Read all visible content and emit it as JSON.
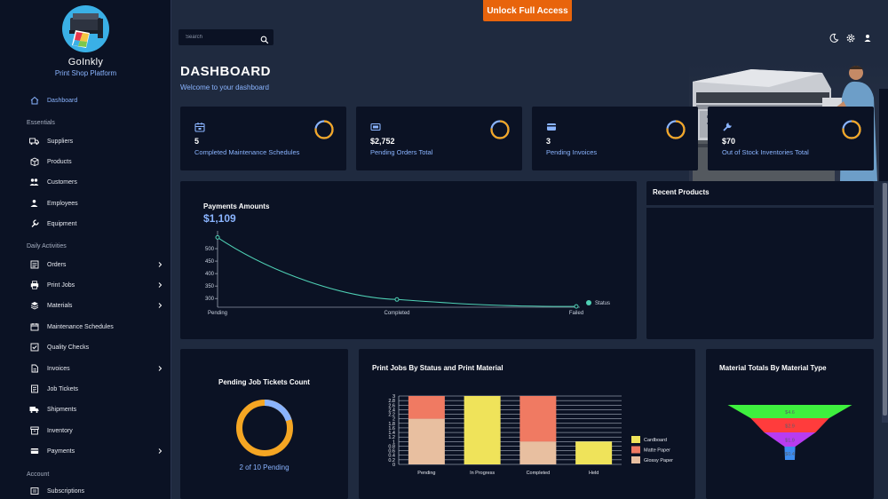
{
  "app": {
    "name": "GoInkly",
    "tagline": "Print Shop Platform"
  },
  "topbar": {
    "unlock_label": "Unlock Full Access",
    "search_placeholder": "Search"
  },
  "page": {
    "title": "DASHBOARD",
    "subtitle": "Welcome to your dashboard"
  },
  "sidebar": {
    "dashboard": "Dashboard",
    "sections": {
      "essentials": "Essentials",
      "daily": "Daily Activities",
      "account": "Account"
    },
    "items": [
      {
        "label": "Suppliers",
        "icon": "truck-icon"
      },
      {
        "label": "Products",
        "icon": "box-icon"
      },
      {
        "label": "Customers",
        "icon": "users-icon"
      },
      {
        "label": "Employees",
        "icon": "user-group-icon"
      },
      {
        "label": "Equipment",
        "icon": "wrench-icon"
      },
      {
        "label": "Orders",
        "icon": "list-icon",
        "has_children": true
      },
      {
        "label": "Print Jobs",
        "icon": "printer-icon",
        "has_children": true
      },
      {
        "label": "Materials",
        "icon": "layers-icon",
        "has_children": true
      },
      {
        "label": "Maintenance Schedules",
        "icon": "calendar-icon"
      },
      {
        "label": "Quality Checks",
        "icon": "check-square-icon"
      },
      {
        "label": "Invoices",
        "icon": "file-icon",
        "has_children": true
      },
      {
        "label": "Job Tickets",
        "icon": "ticket-icon"
      },
      {
        "label": "Shipments",
        "icon": "shipping-icon"
      },
      {
        "label": "Inventory",
        "icon": "archive-icon"
      },
      {
        "label": "Payments",
        "icon": "credit-card-icon",
        "has_children": true
      },
      {
        "label": "Subscriptions",
        "icon": "repeat-icon"
      }
    ]
  },
  "stats": [
    {
      "value": "5",
      "label": "Completed Maintenance Schedules",
      "icon": "calendar-icon"
    },
    {
      "value": "$2,752",
      "label": "Pending Orders Total",
      "icon": "money-icon"
    },
    {
      "value": "3",
      "label": "Pending Invoices",
      "icon": "card-icon"
    },
    {
      "value": "$70",
      "label": "Out of Stock Inventories Total",
      "icon": "wrench-icon"
    }
  ],
  "colors": {
    "accent": "#8ab4ff",
    "ring": "#f5a623",
    "ring_track": "#8ab4ff",
    "unlock": "#e8640c",
    "line": "#4fd1b5"
  },
  "payments": {
    "title": "Payments Amounts",
    "total": "$1,109",
    "legend": "Status",
    "chart_data": {
      "type": "line",
      "categories": [
        "Pending",
        "Completed",
        "Failed"
      ],
      "values": [
        545,
        296,
        268
      ],
      "y_ticks": [
        300,
        350,
        400,
        450,
        500
      ],
      "ylim": [
        265,
        550
      ],
      "grid": false,
      "legend": "right"
    }
  },
  "recent_products": {
    "title": "Recent Products"
  },
  "tickets": {
    "title": "Pending Job Tickets Count",
    "caption": "2 of 10 Pending",
    "pending": 2,
    "total": 10
  },
  "print_jobs": {
    "title": "Print Jobs By Status and Print Material",
    "chart_data": {
      "type": "bar",
      "stacked": true,
      "categories": [
        "Pending",
        "In Progress",
        "Completed",
        "Held"
      ],
      "series": [
        {
          "name": "Glossy Paper",
          "color": "#e8bfa0",
          "values": [
            2,
            0,
            1,
            0
          ]
        },
        {
          "name": "Matte Paper",
          "color": "#f07a62",
          "values": [
            1,
            0,
            2,
            0
          ]
        },
        {
          "name": "Cardboard",
          "color": "#efe35a",
          "values": [
            0,
            3,
            0,
            1
          ]
        }
      ],
      "y_ticks": [
        "0",
        "0.2",
        "0.4",
        "0.6",
        "0.8",
        "1",
        "1.2",
        "1.4",
        "1.6",
        "1.8",
        "2",
        "2.2",
        "2.4",
        "2.6",
        "2.8",
        "3"
      ],
      "ylim": [
        0,
        3
      ],
      "grid": true,
      "legend": "right"
    }
  },
  "materials": {
    "title": "Material Totals By Material Type",
    "chart_data": {
      "type": "funnel",
      "labels": [
        "$4.6",
        "$2.9",
        "$1.9",
        "$0.4"
      ],
      "values": [
        4.6,
        2.9,
        1.9,
        0.4
      ],
      "colors": [
        "#3ef03e",
        "#ff3c3c",
        "#b83cf0",
        "#3c8cf0"
      ]
    }
  }
}
